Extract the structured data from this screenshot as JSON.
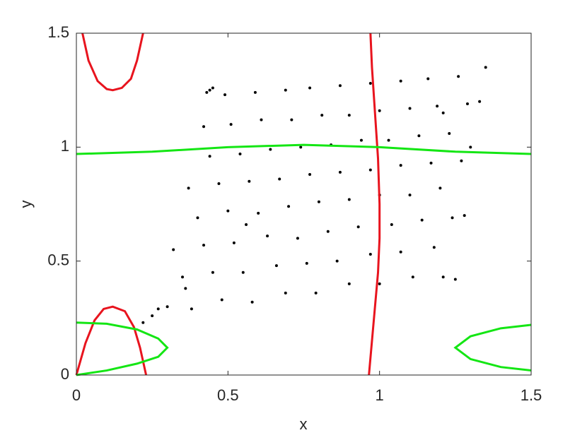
{
  "chart_data": {
    "type": "scatter",
    "xlabel": "x",
    "ylabel": "y",
    "xlim": [
      0,
      1.5
    ],
    "ylim": [
      0,
      1.5
    ],
    "xticks": [
      0,
      0.5,
      1,
      1.5
    ],
    "yticks": [
      0,
      0.5,
      1,
      1.5
    ],
    "grid": false,
    "series": [
      {
        "style": "points",
        "color": "#000000",
        "x": [
          0.27,
          0.38,
          0.48,
          0.58,
          0.69,
          0.79,
          0.9,
          1.0,
          1.11,
          1.21,
          0.35,
          0.45,
          0.55,
          0.66,
          0.76,
          0.86,
          0.97,
          1.07,
          1.18,
          0.32,
          0.42,
          0.52,
          0.63,
          0.73,
          0.83,
          0.93,
          1.04,
          1.14,
          1.24,
          0.4,
          0.5,
          0.6,
          0.7,
          0.8,
          0.9,
          1.0,
          1.1,
          1.2,
          0.37,
          0.47,
          0.57,
          0.67,
          0.77,
          0.87,
          0.97,
          1.07,
          1.17,
          1.27,
          0.44,
          0.54,
          0.64,
          0.74,
          0.84,
          0.94,
          1.03,
          1.13,
          1.23,
          0.42,
          0.51,
          0.61,
          0.71,
          0.81,
          0.9,
          1.0,
          1.1,
          1.19,
          1.29,
          0.49,
          0.59,
          0.69,
          0.77,
          0.87,
          0.97,
          1.07,
          1.16,
          1.26,
          0.22,
          0.25,
          0.3,
          0.36,
          0.44,
          1.35,
          1.33,
          1.3,
          1.28,
          1.25,
          0.43,
          0.45,
          1.21,
          0.56
        ],
        "y": [
          0.29,
          0.29,
          0.33,
          0.32,
          0.36,
          0.36,
          0.4,
          0.4,
          0.43,
          0.43,
          0.43,
          0.45,
          0.45,
          0.48,
          0.49,
          0.5,
          0.53,
          0.54,
          0.56,
          0.55,
          0.57,
          0.58,
          0.61,
          0.6,
          0.63,
          0.65,
          0.66,
          0.68,
          0.69,
          0.69,
          0.72,
          0.71,
          0.74,
          0.76,
          0.77,
          0.79,
          0.79,
          0.82,
          0.82,
          0.84,
          0.85,
          0.86,
          0.88,
          0.89,
          0.9,
          0.92,
          0.93,
          0.94,
          0.96,
          0.97,
          0.99,
          1.0,
          1.01,
          1.03,
          1.03,
          1.05,
          1.06,
          1.09,
          1.1,
          1.12,
          1.12,
          1.14,
          1.14,
          1.16,
          1.17,
          1.18,
          1.19,
          1.23,
          1.24,
          1.25,
          1.26,
          1.27,
          1.28,
          1.29,
          1.3,
          1.31,
          0.23,
          0.26,
          0.3,
          0.38,
          1.25,
          1.35,
          1.2,
          1.0,
          0.7,
          0.42,
          1.24,
          1.26,
          1.15,
          0.66
        ]
      },
      {
        "style": "line",
        "color": "#e8141e",
        "x": [
          0.02,
          0.04,
          0.07,
          0.1,
          0.12,
          0.15,
          0.18,
          0.2,
          0.22,
          null,
          0,
          0.03,
          0.06,
          0.09,
          0.12,
          0.16,
          0.19,
          0.21,
          0.23,
          null,
          0.965,
          0.975,
          0.985,
          0.995,
          1.0,
          1.0,
          0.995,
          0.985,
          0.975,
          0.97
        ],
        "y": [
          1.5,
          1.38,
          1.29,
          1.255,
          1.25,
          1.26,
          1.3,
          1.38,
          1.5,
          null,
          0,
          0.14,
          0.24,
          0.29,
          0.3,
          0.28,
          0.21,
          0.12,
          0,
          null,
          0,
          0.15,
          0.3,
          0.45,
          0.6,
          0.75,
          0.95,
          1.15,
          1.35,
          1.5
        ]
      },
      {
        "style": "line",
        "color": "#14e614",
        "x": [
          0,
          0.25,
          0.5,
          0.75,
          1.0,
          1.25,
          1.5,
          null,
          0,
          0.1,
          0.2,
          0.27,
          0.3,
          0.27,
          0.2,
          0.1,
          0,
          null,
          1.5,
          1.4,
          1.3,
          1.25,
          1.3,
          1.4,
          1.5
        ],
        "y": [
          0.97,
          0.98,
          1.0,
          1.01,
          1.0,
          0.98,
          0.97,
          null,
          0.23,
          0.225,
          0.2,
          0.16,
          0.12,
          0.08,
          0.05,
          0.02,
          0,
          null,
          0.22,
          0.205,
          0.17,
          0.12,
          0.07,
          0.035,
          0.02
        ]
      }
    ]
  }
}
